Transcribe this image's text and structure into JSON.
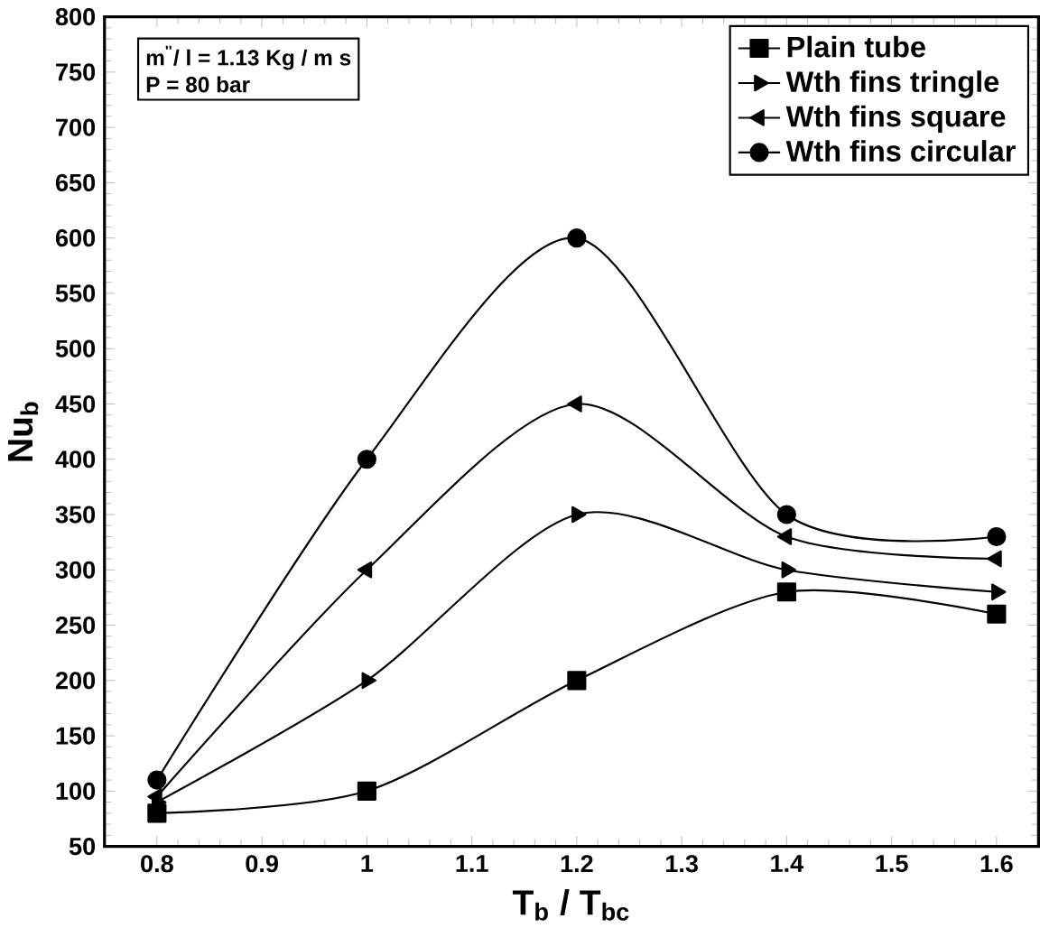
{
  "chart_data": {
    "type": "line",
    "xlabel": "T$_{b}$ /  T$_{bc}$",
    "ylabel": "Nu$_{b}$",
    "x": [
      0.8,
      1,
      1.2,
      1.4,
      1.6
    ],
    "series": [
      {
        "name": "Plain tube",
        "color": "#000000",
        "marker": "square",
        "values": [
          80,
          100,
          200,
          280,
          260
        ]
      },
      {
        "name": "Wth fins tringle",
        "color": "#000000",
        "marker": "triangle-right",
        "values": [
          90,
          200,
          350,
          300,
          280
        ]
      },
      {
        "name": "Wth fins square",
        "color": "#000000",
        "marker": "triangle-left",
        "values": [
          95,
          300,
          450,
          330,
          310
        ]
      },
      {
        "name": "Wth fins circular",
        "color": "#000000",
        "marker": "circle",
        "values": [
          110,
          400,
          600,
          350,
          330
        ]
      }
    ],
    "xlim": [
      0.75,
      1.64
    ],
    "ylim": [
      50,
      800
    ],
    "xticks": [
      0.8,
      0.9,
      1,
      1.1,
      1.2,
      1.3,
      1.4,
      1.5,
      1.6
    ],
    "yticks": [
      50,
      100,
      150,
      200,
      250,
      300,
      350,
      400,
      450,
      500,
      550,
      600,
      650,
      700,
      750,
      800
    ],
    "annotations": [
      "m$^{''}$/ l = 1.13 Kg / m s",
      "P = 80 bar"
    ],
    "legend": "top right",
    "grid": false,
    "line_style": "solid"
  }
}
